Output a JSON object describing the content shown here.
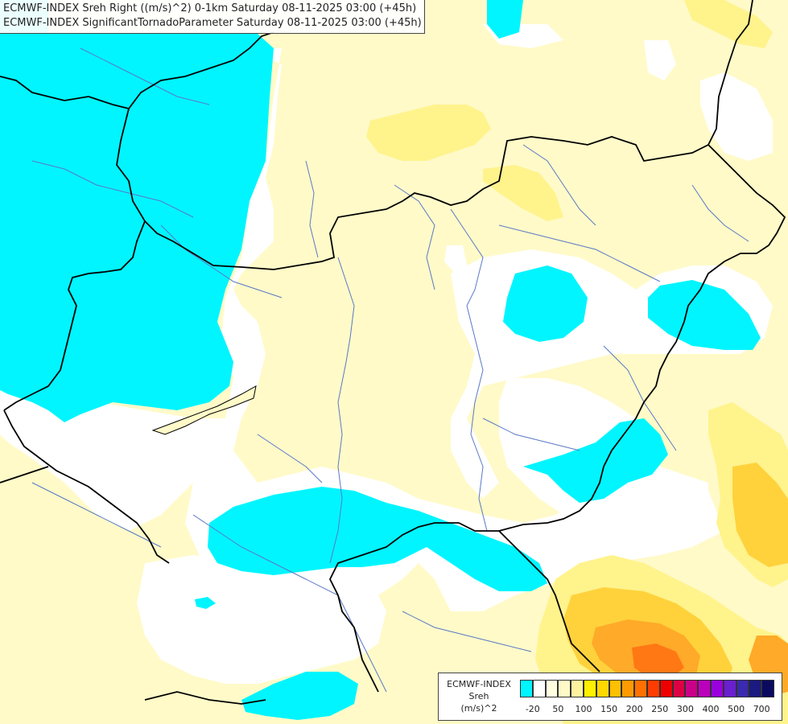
{
  "title": {
    "line1": "ECMWF-INDEX Sreh Right ((m/s)^2) 0-1km Saturday 08-11-2025 03:00 (+45h)",
    "line2": "ECMWF-INDEX SignificantTornadoParameter Saturday 08-11-2025 03:00 (+45h)"
  },
  "legend": {
    "source": "ECMWF-INDEX",
    "variable": "Sreh",
    "unit": "(m/s)^2",
    "swatch_colors": [
      "#00f5ff",
      "#ffffff",
      "#ffffe0",
      "#fffac8",
      "#fff3a0",
      "#fff000",
      "#ffd800",
      "#ffc000",
      "#ff9a00",
      "#ff7000",
      "#ff3c00",
      "#ee0000",
      "#dd0044",
      "#cc0088",
      "#bb00bb",
      "#9900dd",
      "#6a1fd0",
      "#3a2ab0",
      "#1a1a80",
      "#0a0a60"
    ],
    "tick_labels": [
      "-20",
      "50",
      "100",
      "150",
      "200",
      "250",
      "300",
      "400",
      "500",
      "700"
    ]
  },
  "colors": {
    "negative": "#00f5ff",
    "zero": "#ffffff",
    "low": "#fffac8",
    "mid": "#fff38c",
    "high": "#ffd23c",
    "higher": "#ffaa28",
    "peak": "#ff7814",
    "border": "#000000",
    "river": "#5a78c8"
  }
}
